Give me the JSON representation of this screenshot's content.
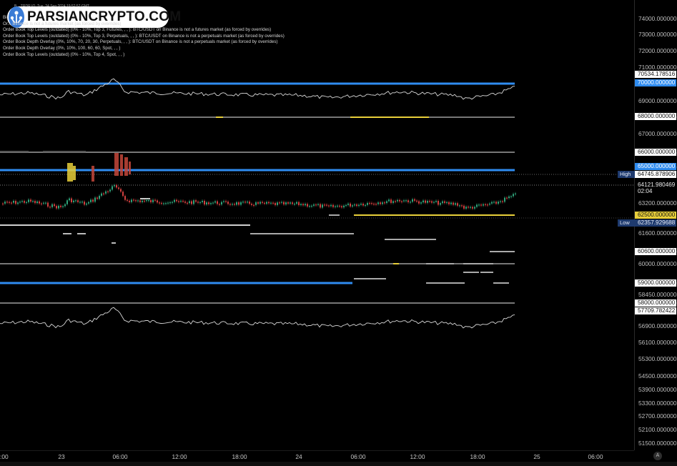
{
  "header": {
    "text": "B... TRDR.IO, Tue, 24 Sep 2024 19:52:57 GMT"
  },
  "logo": {
    "text": "PARSIANCRYPTO.COM",
    "icon": "people-network-icon"
  },
  "legend": [
    "Bi",
    "Or... Binance is not a futures market (as forced by overrides)",
    "Order Book Top Levels (outdated) (0% - 10%, Top 3, Futures, , , ): BTC/USDT on Binance is not a futures market (as forced by overrides)",
    "Order Book Top Levels (outdated) (0% - 10%, Top 3, Perpetuals, , , ): BTC/USDT on Binance is not a perpetuals market (as forced by overrides)",
    "Order Book Depth Overlay (0%, 10%, 70, 20, 30, Perpetuals, , , ): BTC/USDT on Binance is not a perpetuals market (as forced by overrides)",
    "Order Book Depth Overlay (0%, 10%, 100, 60, 60, Spot, , , )",
    "Order Book Top Levels (outdated) (0% - 10%, Top 4, Spot, , , )"
  ],
  "colors": {
    "blue": "#2f8cf0",
    "yellow": "#e8cf3a",
    "gray": "#8a8a8a",
    "white": "#dcdcdc",
    "up": "#2fa37a",
    "down": "#d1403f"
  },
  "chart_data": {
    "type": "line",
    "x_ticks": [
      ":00",
      "23",
      "06:00",
      "12:00",
      "18:00",
      "24",
      "06:00",
      "12:00",
      "18:00",
      "25",
      "06:00"
    ],
    "y_ticks": [
      "74000.000000",
      "73000.000000",
      "72000.000000",
      "71000.000000",
      "69000.000000",
      "68000.000000",
      "67000.000000",
      "66000.000000",
      "65000.000000",
      "63200.000000",
      "61600.000000",
      "60600.000000",
      "60000.000000",
      "59000.000000",
      "58450.000000",
      "58000.000000",
      "56900.000000",
      "56100.000000",
      "55300.000000",
      "54500.000000",
      "53900.000000",
      "53300.000000",
      "52700.000000",
      "52100.000000",
      "51500.000000"
    ],
    "price_tags": [
      {
        "label": "70534.178516",
        "kind": "white"
      },
      {
        "label": "70000.000000",
        "kind": "blue"
      },
      {
        "label": "68000.000000",
        "kind": "white"
      },
      {
        "label": "66000.000000",
        "kind": "white"
      },
      {
        "label": "65000.000000",
        "kind": "blue"
      },
      {
        "label": "64745.878906",
        "kind": "white"
      },
      {
        "label": "64121.980469",
        "kind": "white"
      },
      {
        "label": "02:04",
        "kind": "white"
      },
      {
        "label": "62500.000000",
        "kind": "yellow"
      },
      {
        "label": "62357.929688",
        "kind": "darkblue"
      },
      {
        "label": "60600.000000",
        "kind": "white"
      },
      {
        "label": "59000.000000",
        "kind": "white"
      },
      {
        "label": "58000.000000",
        "kind": "white"
      },
      {
        "label": "57709.782422",
        "kind": "white"
      }
    ],
    "high_label": "High",
    "low_label": "Low",
    "levels": [
      {
        "price": 70000,
        "color": "blue"
      },
      {
        "price": 68000,
        "color": "gray"
      },
      {
        "price": 66000,
        "color": "gray"
      },
      {
        "price": 65000,
        "color": "blue"
      },
      {
        "price": 62500,
        "color": "yellow"
      },
      {
        "price": 60000,
        "color": "gray"
      },
      {
        "price": 59000,
        "color": "blue"
      },
      {
        "price": 58000,
        "color": "gray"
      }
    ]
  },
  "a_button": "A"
}
